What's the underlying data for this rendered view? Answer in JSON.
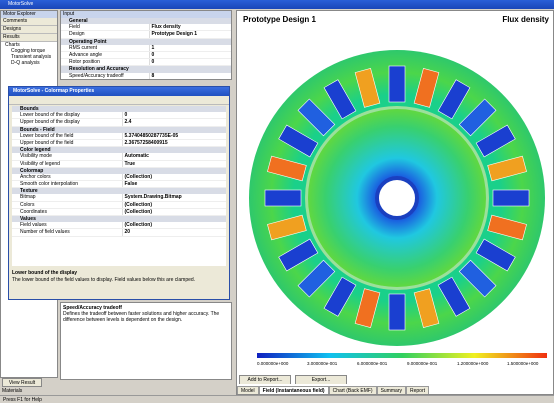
{
  "window_title": "MotorSolve",
  "explorer": {
    "title": "Motor Explorer",
    "tabs": [
      "Comments",
      "Designs",
      "Results"
    ],
    "tree": [
      "Charts",
      "Cogging torque",
      "Transient analysis",
      "D-Q analysis"
    ]
  },
  "input": {
    "title": "Input",
    "sections": [
      {
        "name": "General",
        "rows": [
          [
            "Field",
            "Flux density"
          ],
          [
            "Design",
            "Prototype Design 1"
          ]
        ]
      },
      {
        "name": "Operating Point",
        "rows": [
          [
            "RMS current",
            "1"
          ],
          [
            "Advance angle",
            "0"
          ],
          [
            "Rotor position",
            "0"
          ]
        ]
      },
      {
        "name": "Resolution and Accuracy",
        "rows": [
          [
            "Speed/Accuracy tradeoff",
            "8"
          ]
        ]
      }
    ]
  },
  "dialog": {
    "title": "MotorSolve - Colormap Properties",
    "sections": [
      {
        "name": "Bounds",
        "rows": [
          [
            "Lower bound of the display",
            "0"
          ],
          [
            "Upper bound of the display",
            "2.4"
          ]
        ]
      },
      {
        "name": "Bounds - Field",
        "rows": [
          [
            "Lower bound of the field",
            "5.37404850287735E-05"
          ],
          [
            "Upper bound of the field",
            "2.36757258400915"
          ]
        ]
      },
      {
        "name": "Color legend",
        "rows": [
          [
            "Visibility mode",
            "Automatic"
          ],
          [
            "Visibility of legend",
            "True"
          ]
        ]
      },
      {
        "name": "Colormap",
        "rows": [
          [
            "Anchor colors",
            "(Collection)"
          ],
          [
            "Smooth color interpolation",
            "False"
          ]
        ]
      },
      {
        "name": "Texture",
        "rows": [
          [
            "Bitmap",
            "System.Drawing.Bitmap"
          ],
          [
            "Colors",
            "(Collection)"
          ],
          [
            "Coordinates",
            "(Collection)"
          ]
        ]
      },
      {
        "name": "Values",
        "rows": [
          [
            "Field values",
            "(Collection)"
          ],
          [
            "Number of field values",
            "20"
          ]
        ]
      }
    ],
    "help_title": "Lower bound of the display",
    "help_text": "The lower bound of the field values to display. Field values below this are clamped."
  },
  "help": {
    "title": "Speed/Accuracy tradeoff",
    "text": "Defines the tradeoff between faster solutions and higher accuracy. The difference between levels is dependent on the design."
  },
  "buttons": {
    "view_result": "View Result",
    "materials": "Materials"
  },
  "view": {
    "design": "Prototype Design 1",
    "field": "Flux density",
    "legend": [
      "0.000000e+000",
      "3.000000e-001",
      "6.000000e-001",
      "9.000000e-001",
      "1.200000e+000",
      "1.500000e+000"
    ],
    "buttons": [
      "Add to Report...",
      "Export..."
    ],
    "tabs": [
      "Model",
      "Field (Instantaneous field)",
      "Chart (Back EMF)",
      "Summary",
      "Report"
    ]
  },
  "status": "Press F1 for Help"
}
